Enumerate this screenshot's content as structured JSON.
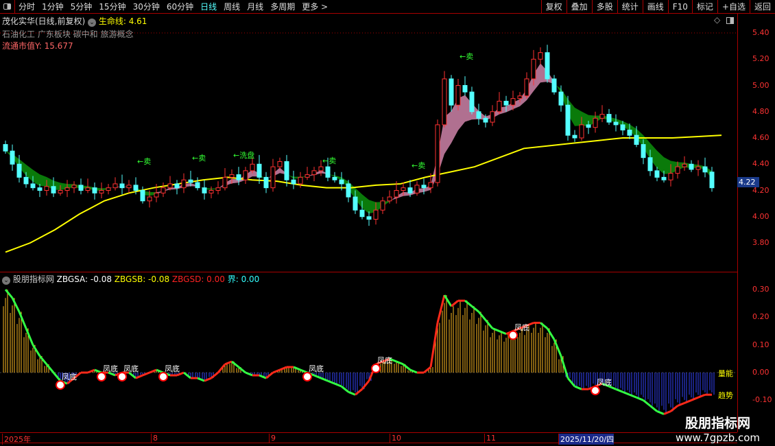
{
  "toolbar": {
    "periods": [
      "分时",
      "1分钟",
      "5分钟",
      "15分钟",
      "30分钟",
      "60分钟",
      "日线",
      "周线",
      "月线",
      "多周期",
      "更多 >"
    ],
    "active": "日线",
    "right_buttons": [
      "复权",
      "叠加",
      "多股",
      "统计",
      "画线",
      "F10",
      "标记",
      "+自选",
      "返回"
    ]
  },
  "header": {
    "title": "茂化实华(日线,前复权)",
    "life_line_label": "生命线: 4.61",
    "sectors": "石油化工 广东板块 碳中和 旅游概念",
    "market_value": "流通市值Y: 15.677"
  },
  "indicator": {
    "name": "股朋指标网",
    "zbgsa": "ZBGSA: -0.08",
    "zbgsb": "ZBGSB: -0.08",
    "zbgsd": "ZBGSD: 0.00",
    "jie": "界: 0.00",
    "label_volume": "量能",
    "label_trend": "趋势",
    "fengdi": "凤底"
  },
  "price_axis": [
    "5.40",
    "5.20",
    "5.00",
    "4.80",
    "4.60",
    "4.40",
    "4.20",
    "4.00",
    "3.80"
  ],
  "current_price": "4.22",
  "osc_axis": [
    "0.30",
    "0.20",
    "0.10",
    "0.00",
    "-0.10"
  ],
  "dates": [
    "2025年",
    "8",
    "9",
    "10",
    "11",
    "2025/11/20/四"
  ],
  "signals": [
    {
      "text": "←卖",
      "bar": 20,
      "price": 4.42
    },
    {
      "text": "←卖",
      "bar": 28,
      "price": 4.45
    },
    {
      "text": "←洗盘",
      "bar": 34,
      "price": 4.47
    },
    {
      "text": "←卖",
      "bar": 47,
      "price": 4.43
    },
    {
      "text": "←卖",
      "bar": 60,
      "price": 4.39
    },
    {
      "text": "←卖",
      "bar": 67,
      "price": 5.22
    }
  ],
  "watermark": {
    "name": "股朋指标网",
    "url": "www.7gpzb.com"
  },
  "colors": {
    "up": "#ff3232",
    "down": "#54ffff",
    "life": "#ffff00",
    "ribbon_up": "#b07090",
    "ribbon_down": "#0a7a0a",
    "hist_neg": "#3344ff",
    "hist_pos": "#ffbb22"
  },
  "chart_data": {
    "type": "candlestick",
    "ylim": [
      3.7,
      5.45
    ],
    "closes": [
      4.5,
      4.4,
      4.3,
      4.25,
      4.22,
      4.2,
      4.23,
      4.18,
      4.2,
      4.22,
      4.24,
      4.2,
      4.22,
      4.18,
      4.2,
      4.22,
      4.25,
      4.22,
      4.24,
      4.2,
      4.12,
      4.15,
      4.18,
      4.22,
      4.25,
      4.22,
      4.28,
      4.26,
      4.22,
      4.18,
      4.2,
      4.22,
      4.3,
      4.32,
      4.28,
      4.35,
      4.4,
      4.3,
      4.22,
      4.38,
      4.42,
      4.28,
      4.25,
      4.3,
      4.32,
      4.35,
      4.38,
      4.3,
      4.28,
      4.25,
      4.15,
      4.05,
      4.0,
      3.98,
      4.05,
      4.12,
      4.15,
      4.2,
      4.22,
      4.18,
      4.24,
      4.22,
      4.26,
      4.7,
      5.05,
      4.85,
      5.0,
      4.95,
      4.8,
      4.75,
      4.72,
      4.8,
      4.88,
      4.85,
      4.9,
      4.92,
      5.05,
      5.2,
      5.25,
      5.05,
      4.95,
      4.85,
      4.62,
      4.6,
      4.7,
      4.68,
      4.75,
      4.78,
      4.72,
      4.7,
      4.66,
      4.62,
      4.55,
      4.45,
      4.35,
      4.3,
      4.28,
      4.33,
      4.38,
      4.4,
      4.36,
      4.38,
      4.34,
      4.22
    ],
    "life_line": [
      [
        0,
        3.73
      ],
      [
        10,
        3.8
      ],
      [
        20,
        3.9
      ],
      [
        30,
        4.02
      ],
      [
        40,
        4.12
      ],
      [
        50,
        4.18
      ],
      [
        60,
        4.22
      ],
      [
        70,
        4.25
      ],
      [
        80,
        4.28
      ],
      [
        90,
        4.3
      ],
      [
        100,
        4.28
      ],
      [
        110,
        4.27
      ],
      [
        120,
        4.24
      ],
      [
        130,
        4.22
      ],
      [
        140,
        4.22
      ],
      [
        150,
        4.24
      ],
      [
        160,
        4.25
      ],
      [
        170,
        4.3
      ],
      [
        180,
        4.34
      ],
      [
        190,
        4.38
      ],
      [
        200,
        4.45
      ],
      [
        210,
        4.52
      ],
      [
        220,
        4.54
      ],
      [
        230,
        4.56
      ],
      [
        240,
        4.58
      ],
      [
        250,
        4.6
      ],
      [
        260,
        4.6
      ],
      [
        270,
        4.6
      ],
      [
        280,
        4.61
      ],
      [
        290,
        4.62
      ]
    ],
    "oscillator": [
      0.3,
      0.27,
      0.22,
      0.16,
      0.1,
      0.06,
      0.03,
      0.0,
      -0.03,
      -0.04,
      -0.02,
      0.0,
      0.0,
      0.01,
      0.0,
      0.0,
      -0.01,
      0.0,
      0.0,
      -0.02,
      -0.01,
      0.0,
      0.01,
      0.0,
      -0.01,
      -0.01,
      0.0,
      -0.02,
      -0.02,
      -0.03,
      -0.02,
      0.0,
      0.03,
      0.04,
      0.02,
      0.0,
      -0.01,
      -0.01,
      -0.02,
      0.0,
      0.01,
      0.02,
      0.02,
      0.01,
      0.0,
      -0.01,
      -0.02,
      -0.03,
      -0.04,
      -0.05,
      -0.07,
      -0.08,
      -0.06,
      -0.03,
      0.03,
      0.04,
      0.05,
      0.04,
      0.03,
      0.01,
      0.0,
      0.0,
      0.02,
      0.18,
      0.28,
      0.24,
      0.26,
      0.26,
      0.24,
      0.22,
      0.19,
      0.16,
      0.15,
      0.14,
      0.15,
      0.16,
      0.17,
      0.18,
      0.18,
      0.16,
      0.12,
      0.06,
      -0.02,
      -0.05,
      -0.06,
      -0.06,
      -0.05,
      -0.04,
      -0.05,
      -0.06,
      -0.07,
      -0.08,
      -0.09,
      -0.1,
      -0.12,
      -0.14,
      -0.15,
      -0.14,
      -0.12,
      -0.11,
      -0.1,
      -0.09,
      -0.08,
      -0.08
    ],
    "osc_ylim": [
      -0.17,
      0.33
    ],
    "fengdi_bars": [
      8,
      14,
      17,
      23,
      44,
      54,
      74,
      86
    ]
  }
}
